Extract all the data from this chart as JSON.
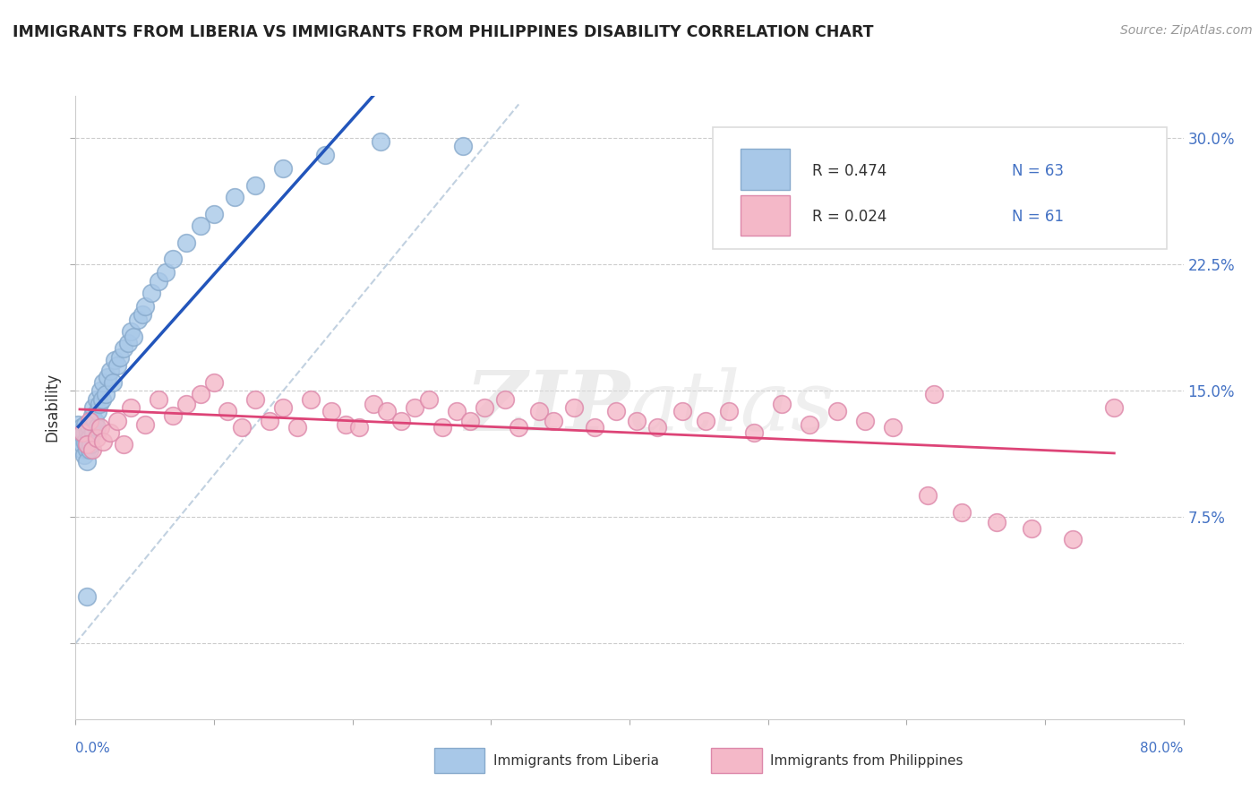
{
  "title": "IMMIGRANTS FROM LIBERIA VS IMMIGRANTS FROM PHILIPPINES DISABILITY CORRELATION CHART",
  "source": "Source: ZipAtlas.com",
  "ylabel": "Disability",
  "watermark_zip": "ZIP",
  "watermark_atlas": "atlas",
  "liberia_color": "#a8c8e8",
  "liberia_edge": "#88aacc",
  "philippines_color": "#f4b8c8",
  "philippines_edge": "#dd88aa",
  "trendline_liberia_color": "#2255bb",
  "trendline_philippines_color": "#dd4477",
  "diagonal_color": "#bbccdd",
  "legend_R1": "R = 0.474",
  "legend_N1": "N = 63",
  "legend_R2": "R = 0.024",
  "legend_N2": "N = 61",
  "text_color_dark": "#333333",
  "text_color_blue": "#4472c4",
  "xmin": 0.0,
  "xmax": 0.8,
  "ymin": -0.045,
  "ymax": 0.325,
  "liberia_x": [
    0.002,
    0.003,
    0.004,
    0.004,
    0.005,
    0.005,
    0.005,
    0.006,
    0.006,
    0.007,
    0.007,
    0.008,
    0.008,
    0.008,
    0.009,
    0.009,
    0.01,
    0.01,
    0.01,
    0.01,
    0.01,
    0.011,
    0.011,
    0.012,
    0.012,
    0.013,
    0.013,
    0.014,
    0.015,
    0.015,
    0.016,
    0.017,
    0.018,
    0.019,
    0.02,
    0.022,
    0.023,
    0.025,
    0.027,
    0.028,
    0.03,
    0.032,
    0.035,
    0.038,
    0.04,
    0.042,
    0.045,
    0.048,
    0.05,
    0.055,
    0.06,
    0.065,
    0.07,
    0.08,
    0.09,
    0.1,
    0.115,
    0.13,
    0.15,
    0.18,
    0.22,
    0.28,
    0.008
  ],
  "liberia_y": [
    0.13,
    0.125,
    0.12,
    0.128,
    0.115,
    0.122,
    0.118,
    0.125,
    0.112,
    0.119,
    0.13,
    0.115,
    0.122,
    0.108,
    0.125,
    0.118,
    0.13,
    0.123,
    0.128,
    0.115,
    0.122,
    0.132,
    0.118,
    0.128,
    0.135,
    0.125,
    0.14,
    0.132,
    0.128,
    0.145,
    0.138,
    0.142,
    0.15,
    0.145,
    0.155,
    0.148,
    0.158,
    0.162,
    0.155,
    0.168,
    0.165,
    0.17,
    0.175,
    0.178,
    0.185,
    0.182,
    0.192,
    0.195,
    0.2,
    0.208,
    0.215,
    0.22,
    0.228,
    0.238,
    0.248,
    0.255,
    0.265,
    0.272,
    0.282,
    0.29,
    0.298,
    0.295,
    0.028
  ],
  "philippines_x": [
    0.005,
    0.008,
    0.01,
    0.012,
    0.015,
    0.018,
    0.02,
    0.025,
    0.03,
    0.035,
    0.04,
    0.05,
    0.06,
    0.07,
    0.08,
    0.09,
    0.1,
    0.11,
    0.12,
    0.13,
    0.14,
    0.15,
    0.16,
    0.17,
    0.185,
    0.195,
    0.205,
    0.215,
    0.225,
    0.235,
    0.245,
    0.255,
    0.265,
    0.275,
    0.285,
    0.295,
    0.31,
    0.32,
    0.335,
    0.345,
    0.36,
    0.375,
    0.39,
    0.405,
    0.42,
    0.438,
    0.455,
    0.472,
    0.49,
    0.51,
    0.53,
    0.55,
    0.57,
    0.59,
    0.615,
    0.64,
    0.665,
    0.69,
    0.72,
    0.75,
    0.62
  ],
  "philippines_y": [
    0.125,
    0.118,
    0.132,
    0.115,
    0.122,
    0.128,
    0.12,
    0.125,
    0.132,
    0.118,
    0.14,
    0.13,
    0.145,
    0.135,
    0.142,
    0.148,
    0.155,
    0.138,
    0.128,
    0.145,
    0.132,
    0.14,
    0.128,
    0.145,
    0.138,
    0.13,
    0.128,
    0.142,
    0.138,
    0.132,
    0.14,
    0.145,
    0.128,
    0.138,
    0.132,
    0.14,
    0.145,
    0.128,
    0.138,
    0.132,
    0.14,
    0.128,
    0.138,
    0.132,
    0.128,
    0.138,
    0.132,
    0.138,
    0.125,
    0.142,
    0.13,
    0.138,
    0.132,
    0.128,
    0.088,
    0.078,
    0.072,
    0.068,
    0.062,
    0.14,
    0.148
  ]
}
